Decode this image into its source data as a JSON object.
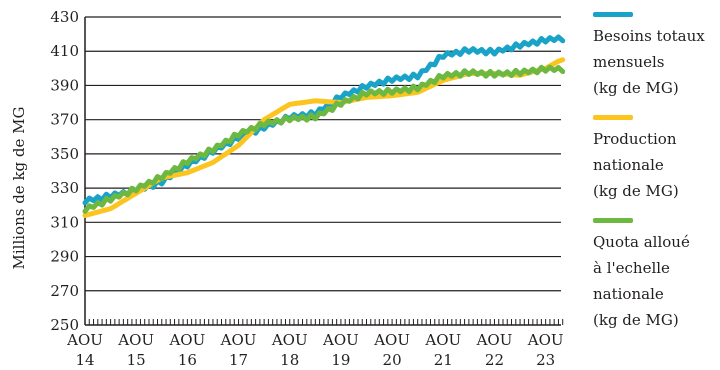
{
  "chart_data": {
    "type": "line",
    "ylabel": "Millions de kg de MG",
    "xlabel": "",
    "ylim": [
      250,
      430
    ],
    "yticks": [
      250,
      270,
      290,
      310,
      330,
      350,
      370,
      390,
      410,
      430
    ],
    "x_ticks": [
      {
        "top": "AOU",
        "bottom": "14"
      },
      {
        "top": "AOU",
        "bottom": "15"
      },
      {
        "top": "AOU",
        "bottom": "16"
      },
      {
        "top": "AOU",
        "bottom": "17"
      },
      {
        "top": "AOU",
        "bottom": "18"
      },
      {
        "top": "AOU",
        "bottom": "19"
      },
      {
        "top": "AOU",
        "bottom": "20"
      },
      {
        "top": "AOU",
        "bottom": "21"
      },
      {
        "top": "AOU",
        "bottom": "22"
      },
      {
        "top": "AOU",
        "bottom": "23"
      }
    ],
    "grid": true,
    "legend_position": "right",
    "series": [
      {
        "name": "Besoins totaux mensuels (kg de MG)",
        "color": "#1aa3c8",
        "anchors": [
          [
            0,
            323
          ],
          [
            0.5,
            326
          ],
          [
            1,
            329
          ],
          [
            1.5,
            334
          ],
          [
            2,
            344
          ],
          [
            2.5,
            352
          ],
          [
            3,
            360
          ],
          [
            3.5,
            366
          ],
          [
            4,
            372
          ],
          [
            4.5,
            374
          ],
          [
            5,
            384
          ],
          [
            5.5,
            390
          ],
          [
            6,
            394
          ],
          [
            6.5,
            396
          ],
          [
            7,
            408
          ],
          [
            7.5,
            411
          ],
          [
            8,
            410
          ],
          [
            8.5,
            414
          ],
          [
            9,
            417
          ],
          [
            9.3,
            418
          ]
        ]
      },
      {
        "name": "Production nationale (kg de MG)",
        "color": "#fcc41f",
        "anchors": [
          [
            0,
            314
          ],
          [
            0.5,
            318
          ],
          [
            1,
            327
          ],
          [
            1.5,
            336
          ],
          [
            2,
            339
          ],
          [
            2.5,
            345
          ],
          [
            3,
            355
          ],
          [
            3.5,
            370
          ],
          [
            4,
            379
          ],
          [
            4.5,
            381
          ],
          [
            5,
            380
          ],
          [
            5.5,
            383
          ],
          [
            6,
            384
          ],
          [
            6.5,
            386
          ],
          [
            7,
            393
          ],
          [
            7.5,
            397
          ],
          [
            8,
            397
          ],
          [
            8.5,
            396
          ],
          [
            9,
            400
          ],
          [
            9.3,
            405
          ]
        ]
      },
      {
        "name": "Quota alloué à l'echelle nationale (kg de MG)",
        "color": "#6cb841",
        "anchors": [
          [
            0,
            318
          ],
          [
            0.5,
            324
          ],
          [
            1,
            330
          ],
          [
            1.5,
            337
          ],
          [
            2,
            346
          ],
          [
            2.5,
            353
          ],
          [
            3,
            362
          ],
          [
            3.5,
            368
          ],
          [
            4,
            371
          ],
          [
            4.5,
            372
          ],
          [
            5,
            380
          ],
          [
            5.5,
            386
          ],
          [
            6,
            387
          ],
          [
            6.5,
            389
          ],
          [
            7,
            396
          ],
          [
            7.5,
            398
          ],
          [
            8,
            397
          ],
          [
            8.5,
            398
          ],
          [
            9,
            400
          ],
          [
            9.3,
            400
          ]
        ]
      }
    ]
  },
  "legend": {
    "items": [
      {
        "label": "Besoins totaux\nmensuels\n(kg de MG)",
        "color": "#1aa3c8"
      },
      {
        "label": "Production\nnationale\n(kg de MG)",
        "color": "#fcc41f"
      },
      {
        "label": "Quota alloué\nà l'echelle\nnationale\n(kg de MG)",
        "color": "#6cb841"
      }
    ]
  }
}
